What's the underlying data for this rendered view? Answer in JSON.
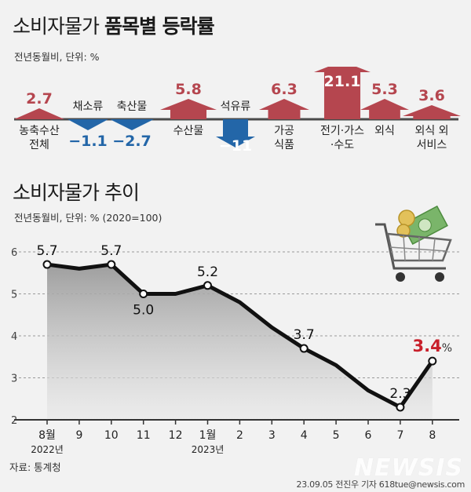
{
  "top": {
    "title_plain": "소비자물가 ",
    "title_bold": "품목별 등락률",
    "subtitle": "전년동월비, 단위: %"
  },
  "bottom": {
    "title": "소비자물가 추이",
    "subtitle": "전년동월비, 단위: % (2020=100)"
  },
  "source": "자료: 통계청",
  "credit": "23.09.05 전진우 기자 618tue@newsis.com",
  "watermark": "NEWSIS",
  "colors": {
    "up": "#b5464f",
    "down": "#2366a8",
    "line": "#111111",
    "highlight": "#c8202b"
  },
  "chart_data": [
    {
      "type": "bar",
      "title": "소비자물가 품목별 등락률",
      "unit": "%",
      "categories": [
        [
          "농축수산",
          "전체"
        ],
        [
          "채소류"
        ],
        [
          "축산물"
        ],
        [
          "수산물"
        ],
        [
          "석유류"
        ],
        [
          "가공",
          "식품"
        ],
        [
          "전기·가스",
          "·수도"
        ],
        [
          "외식"
        ],
        [
          "외식 외",
          "서비스"
        ]
      ],
      "values": [
        2.7,
        -1.1,
        -2.7,
        5.8,
        -11,
        6.3,
        21.1,
        5.3,
        3.6
      ],
      "value_labels": [
        "2.7",
        "−1.1",
        "−2.7",
        "5.8",
        "−11",
        "6.3",
        "21.1",
        "5.3",
        "3.6"
      ]
    },
    {
      "type": "line",
      "title": "소비자물가 추이",
      "unit": "%",
      "x": [
        "8월",
        "9",
        "10",
        "11",
        "12",
        "1월",
        "2",
        "3",
        "4",
        "5",
        "6",
        "7",
        "8"
      ],
      "x_year_labels": [
        {
          "index": 0,
          "text": "2022년"
        },
        {
          "index": 5,
          "text": "2023년"
        }
      ],
      "values": [
        5.7,
        5.6,
        5.7,
        5.0,
        5.0,
        5.2,
        4.8,
        4.2,
        3.7,
        3.3,
        2.7,
        2.3,
        3.4
      ],
      "labels": [
        {
          "index": 0,
          "text": "5.7"
        },
        {
          "index": 2,
          "text": "5.7"
        },
        {
          "index": 3,
          "text": "5.0"
        },
        {
          "index": 5,
          "text": "5.2"
        },
        {
          "index": 8,
          "text": "3.7"
        },
        {
          "index": 11,
          "text": "2.3"
        },
        {
          "index": 12,
          "text": "3.4",
          "suffix": "%",
          "highlight": true
        }
      ],
      "ylim": [
        2,
        6
      ],
      "yticks": [
        2,
        3,
        4,
        5,
        6
      ],
      "grid": true
    }
  ]
}
